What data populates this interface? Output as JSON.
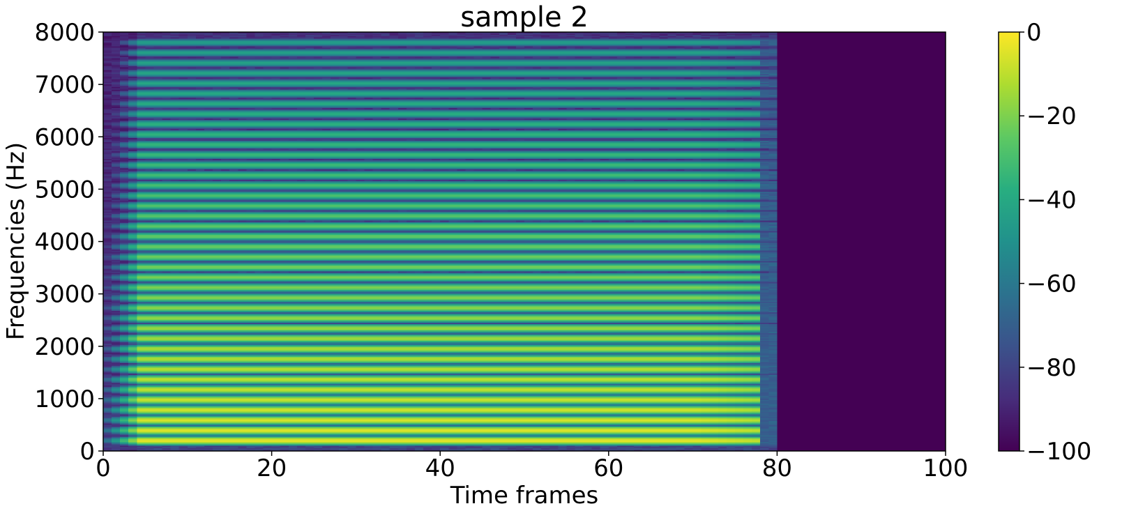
{
  "chart_data": {
    "type": "heatmap",
    "title": "sample 2",
    "xlabel": "Time frames",
    "ylabel": "Frequencies (Hz)",
    "xlim": [
      0,
      100
    ],
    "ylim": [
      0,
      8000
    ],
    "x_ticks": [
      0,
      20,
      40,
      60,
      80,
      100
    ],
    "y_ticks": [
      0,
      1000,
      2000,
      3000,
      4000,
      5000,
      6000,
      7000,
      8000
    ],
    "x_tick_labels": [
      "0",
      "20",
      "40",
      "60",
      "80",
      "100"
    ],
    "y_tick_labels": [
      "0",
      "1000",
      "2000",
      "3000",
      "4000",
      "5000",
      "6000",
      "7000",
      "8000"
    ],
    "colorbar": {
      "colormap": "viridis",
      "range": [
        -100,
        0
      ],
      "ticks": [
        0,
        -20,
        -40,
        -60,
        -80,
        -100
      ],
      "tick_labels": [
        "0",
        "−20",
        "−40",
        "−60",
        "−80",
        "−100"
      ]
    },
    "signal_end_frame": 80,
    "silence_level_db": -100,
    "fundamental_hz": 195,
    "harmonic_count": 40,
    "grid": false
  }
}
